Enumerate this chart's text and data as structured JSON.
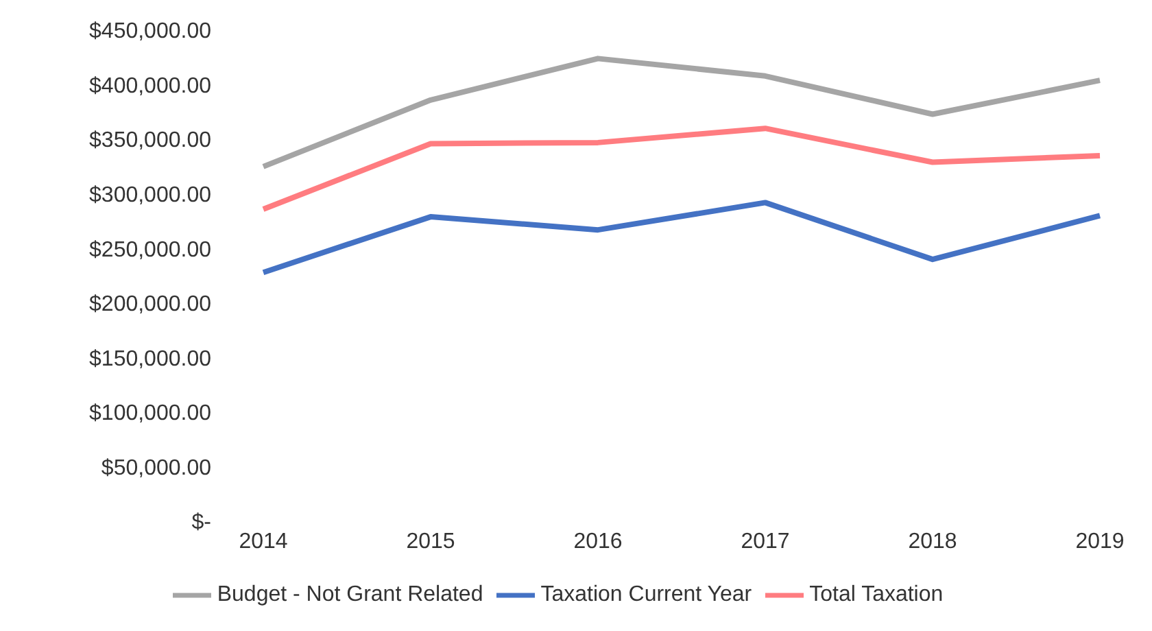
{
  "chart_data": {
    "type": "line",
    "categories": [
      "2014",
      "2015",
      "2016",
      "2017",
      "2018",
      "2019"
    ],
    "series": [
      {
        "name": "Taxation Current Year",
        "color": "#4472c4",
        "values": [
          228000,
          279000,
          267000,
          292000,
          240000,
          280000
        ]
      },
      {
        "name": "Total Taxation",
        "color": "#ff7c80",
        "values": [
          286000,
          346000,
          347000,
          360000,
          329000,
          335000
        ]
      },
      {
        "name": "Budget -  Not Grant Related",
        "color": "#a5a5a5",
        "values": [
          325000,
          386000,
          424000,
          408000,
          373000,
          404000
        ]
      }
    ],
    "ylim": [
      0,
      450000
    ],
    "yticks": [
      {
        "value": 0,
        "label": "$-"
      },
      {
        "value": 50000,
        "label": "$50,000.00"
      },
      {
        "value": 100000,
        "label": "$100,000.00"
      },
      {
        "value": 150000,
        "label": "$150,000.00"
      },
      {
        "value": 200000,
        "label": "$200,000.00"
      },
      {
        "value": 250000,
        "label": "$250,000.00"
      },
      {
        "value": 300000,
        "label": "$300,000.00"
      },
      {
        "value": 350000,
        "label": "$350,000.00"
      },
      {
        "value": 400000,
        "label": "$400,000.00"
      },
      {
        "value": 450000,
        "label": "$450,000.00"
      }
    ],
    "legend": "bottom",
    "marker": "none",
    "line_style": "solid",
    "grid": false
  }
}
